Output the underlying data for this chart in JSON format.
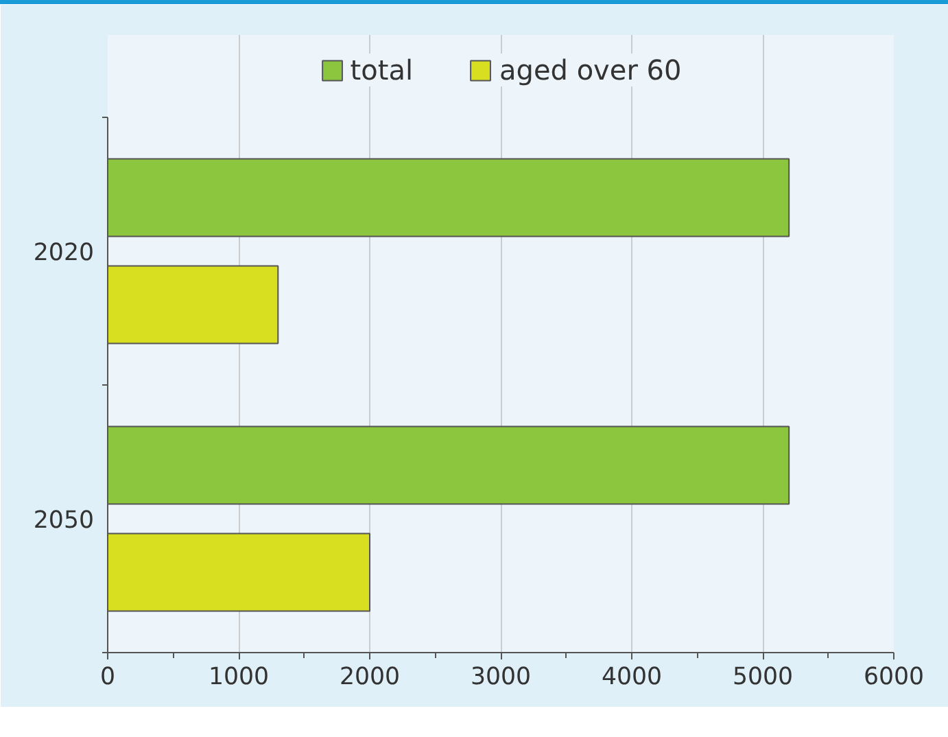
{
  "chart_data": {
    "type": "bar",
    "orientation": "horizontal",
    "categories": [
      "2020",
      "2050"
    ],
    "series": [
      {
        "name": "total",
        "color": "#8cc63f",
        "values": [
          5200,
          5200
        ]
      },
      {
        "name": "aged over 60",
        "color": "#d8df20",
        "values": [
          1300,
          2000
        ]
      }
    ],
    "xlim": [
      0,
      6000
    ],
    "xticks": [
      0,
      1000,
      2000,
      3000,
      4000,
      5000,
      6000
    ],
    "grid": "x",
    "legend": "top"
  }
}
